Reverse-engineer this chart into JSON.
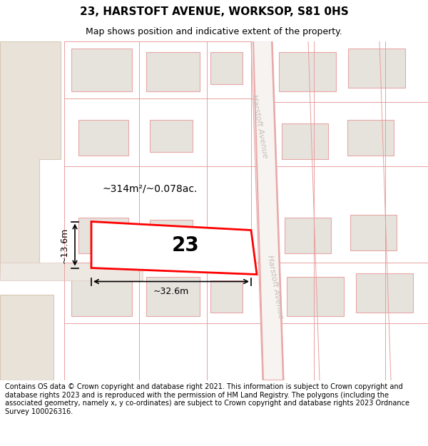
{
  "title": "23, HARSTOFT AVENUE, WORKSOP, S81 0HS",
  "subtitle": "Map shows position and indicative extent of the property.",
  "footer": "Contains OS data © Crown copyright and database right 2021. This information is subject to Crown copyright and database rights 2023 and is reproduced with the permission of HM Land Registry. The polygons (including the associated geometry, namely x, y co-ordinates) are subject to Crown copyright and database rights 2023 Ordnance Survey 100026316.",
  "subject_label": "23",
  "area_label": "~314m²/~0.078ac.",
  "dim_width_label": "~32.6m",
  "dim_height_label": "~13.6m",
  "road_label": "Harstoft Avenue",
  "map_bg": "#f2f0ed",
  "road_bg": "#f7f3f0",
  "building_fill": "#e6e2dc",
  "building_edge": "#e8a8a8",
  "road_edge": "#e8a8a8",
  "subject_fill": "#ffffff",
  "subject_edge": "#ff0000",
  "road_label_color": "#c8c0b8",
  "title_fontsize": 11,
  "subtitle_fontsize": 9,
  "footer_fontsize": 7
}
